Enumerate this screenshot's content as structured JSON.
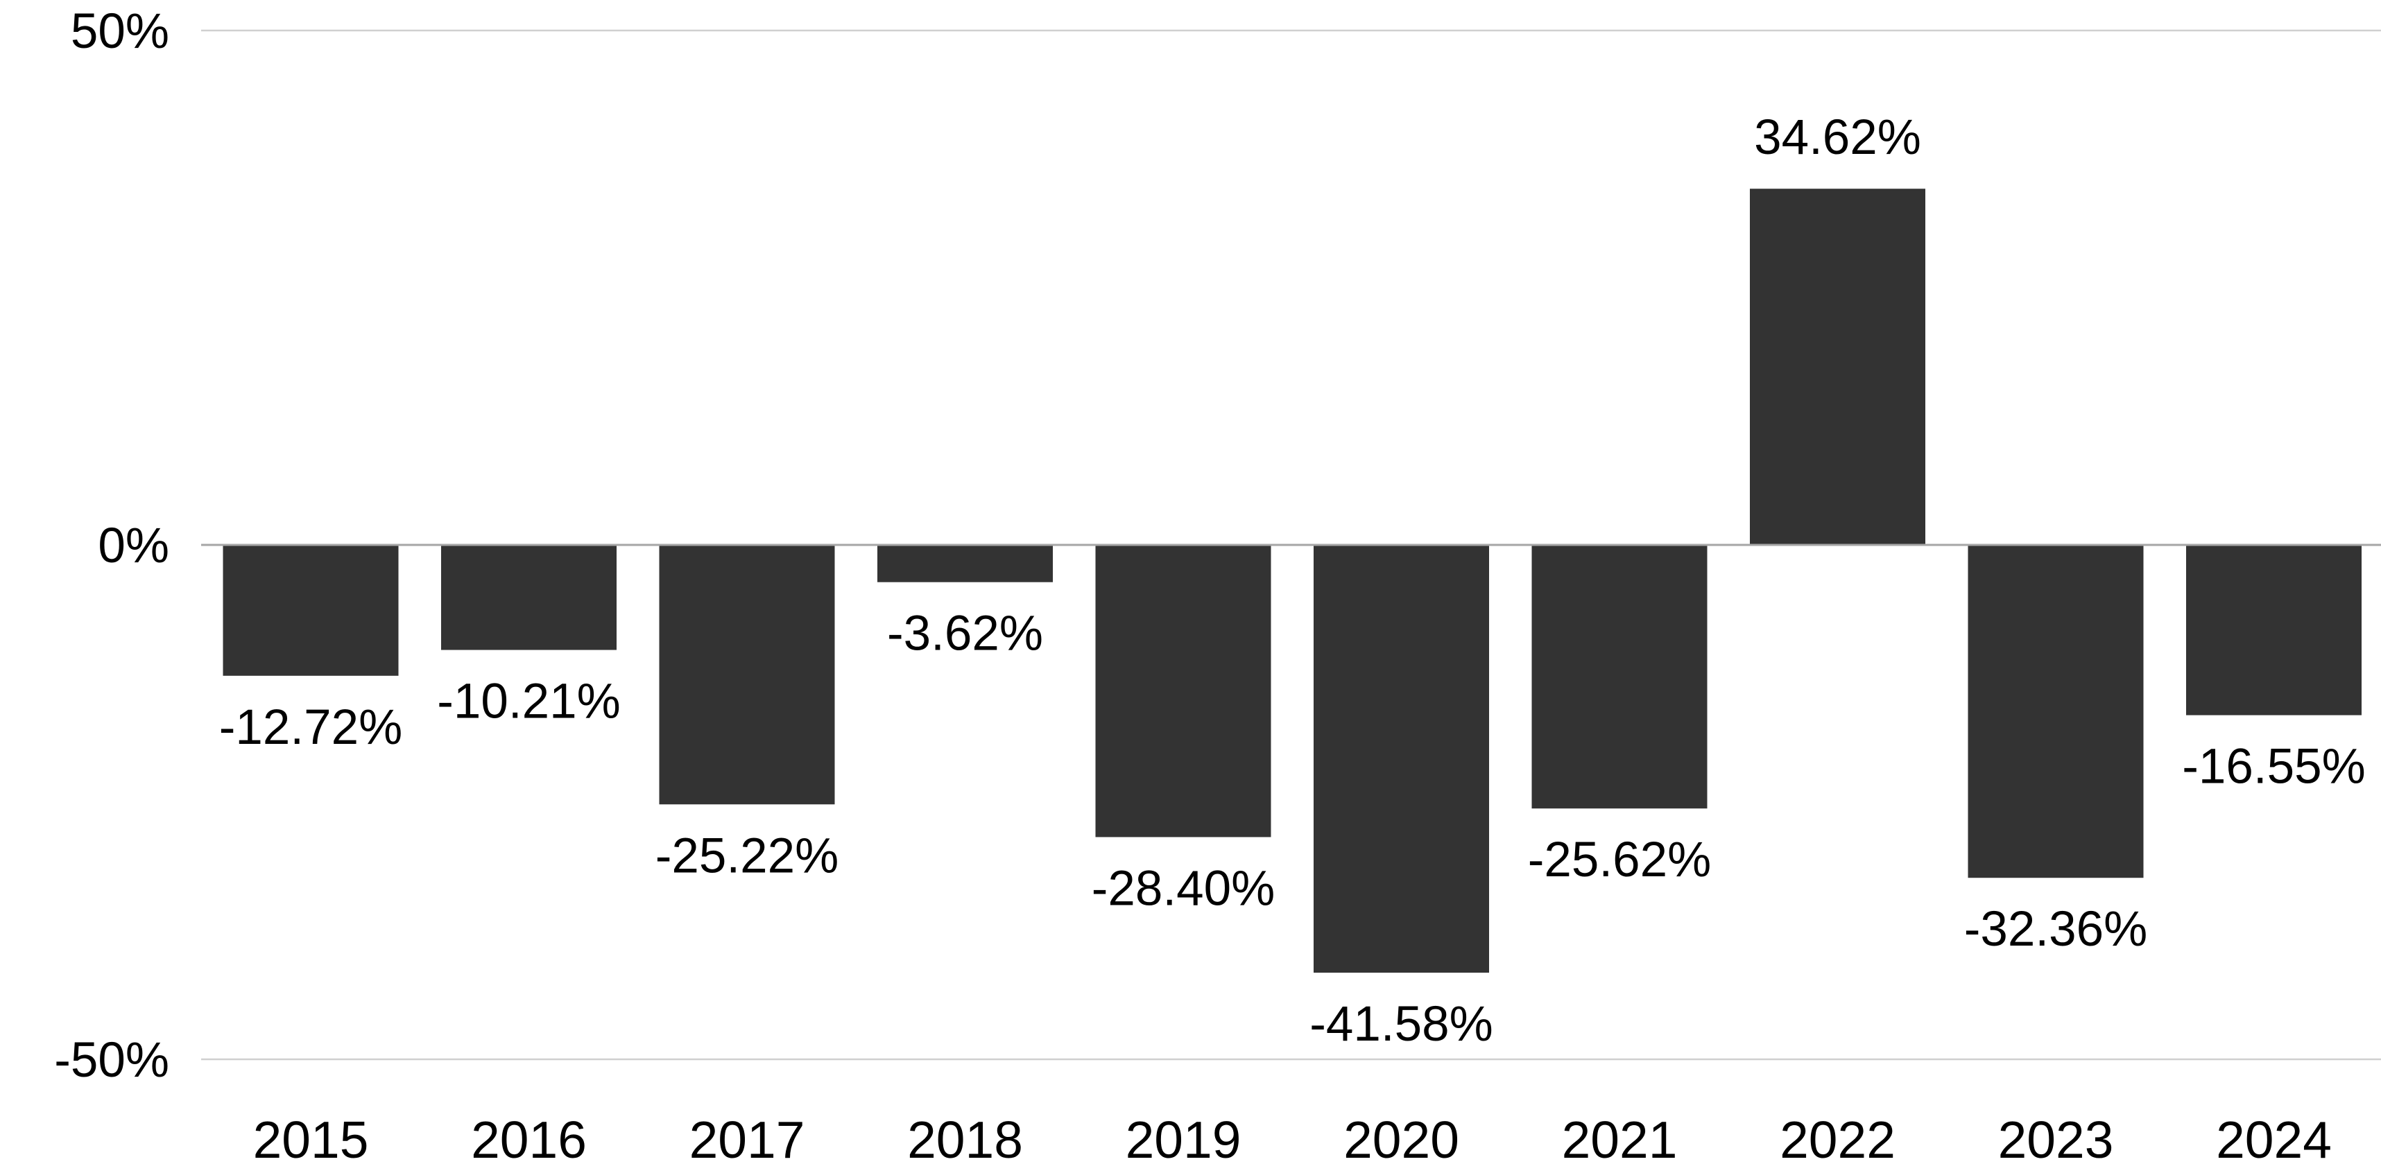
{
  "chart_data": {
    "type": "bar",
    "title": "",
    "xlabel": "",
    "ylabel": "",
    "categories": [
      "2015",
      "2016",
      "2017",
      "2018",
      "2019",
      "2020",
      "2021",
      "2022",
      "2023",
      "2024"
    ],
    "values": [
      -12.72,
      -10.21,
      -25.22,
      -3.62,
      -28.4,
      -41.58,
      -25.62,
      34.62,
      -32.36,
      -16.55
    ],
    "data_labels": [
      "-12.72%",
      "-10.21%",
      "-25.22%",
      "-3.62%",
      "-28.40%",
      "-41.58%",
      "-25.62%",
      "34.62%",
      "-32.36%",
      "-16.55%"
    ],
    "ylim": [
      -50,
      50
    ],
    "y_ticks": [
      50,
      0,
      -50
    ],
    "y_tick_labels": [
      "50%",
      "0%",
      "-50%"
    ],
    "grid": true,
    "legend": "none",
    "colors": {
      "bar": "#333333",
      "gridline": "#d0d0d0",
      "zero_line": "#a6a6a6",
      "text": "#000000"
    }
  }
}
